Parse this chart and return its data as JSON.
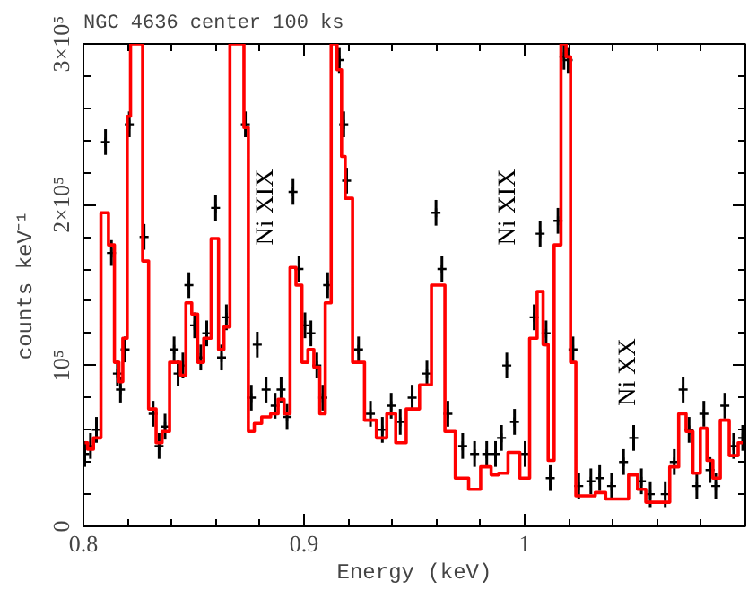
{
  "chart_data": {
    "type": "scatter",
    "title": "NGC 4636 center 100 ks",
    "xlabel": "Energy (keV)",
    "ylabel": "counts keV⁻¹",
    "xlim": [
      0.8,
      1.1
    ],
    "ylim": [
      0,
      300000
    ],
    "xticks": [
      {
        "value": 0.8,
        "label": "0.8"
      },
      {
        "value": 0.82,
        "label": null
      },
      {
        "value": 0.84,
        "label": null
      },
      {
        "value": 0.86,
        "label": null
      },
      {
        "value": 0.88,
        "label": null
      },
      {
        "value": 0.9,
        "label": "0.9"
      },
      {
        "value": 0.92,
        "label": null
      },
      {
        "value": 0.94,
        "label": null
      },
      {
        "value": 0.96,
        "label": null
      },
      {
        "value": 0.98,
        "label": null
      },
      {
        "value": 1,
        "label": "1"
      },
      {
        "value": 1.02,
        "label": null
      },
      {
        "value": 1.04,
        "label": null
      },
      {
        "value": 1.06,
        "label": null
      },
      {
        "value": 1.08,
        "label": null
      }
    ],
    "yticks": [
      {
        "value": 0,
        "label": "0"
      },
      {
        "value": 20000,
        "label": null
      },
      {
        "value": 40000,
        "label": null
      },
      {
        "value": 60000,
        "label": null
      },
      {
        "value": 80000,
        "label": null
      },
      {
        "value": 100000,
        "label": "10⁵"
      },
      {
        "value": 120000,
        "label": null
      },
      {
        "value": 140000,
        "label": null
      },
      {
        "value": 160000,
        "label": null
      },
      {
        "value": 180000,
        "label": null
      },
      {
        "value": 200000,
        "label": "2×10⁵"
      },
      {
        "value": 220000,
        "label": null
      },
      {
        "value": 240000,
        "label": null
      },
      {
        "value": 260000,
        "label": null
      },
      {
        "value": 280000,
        "label": null
      },
      {
        "value": 300000,
        "label": "3×10⁵"
      }
    ],
    "grid": false,
    "annotations": [
      "Ni XIX",
      "Ni XIX",
      "Ni XX"
    ],
    "series": [
      {
        "color": "#000000",
        "marker": "cross",
        "x": [
          0.8006,
          0.8032,
          0.8059,
          0.81,
          0.8127,
          0.8154,
          0.8168,
          0.8189,
          0.8208,
          0.8275,
          0.8316,
          0.8343,
          0.837,
          0.8411,
          0.8429,
          0.8451,
          0.8478,
          0.8504,
          0.8532,
          0.8559,
          0.8599,
          0.8626,
          0.8648,
          0.8734,
          0.8761,
          0.8788,
          0.8828,
          0.8869,
          0.8896,
          0.8923,
          0.895,
          0.8977,
          0.9004,
          0.9031,
          0.9058,
          0.9085,
          0.9107,
          0.916,
          0.918,
          0.9193,
          0.9247,
          0.9301,
          0.9355,
          0.9395,
          0.9436,
          0.949,
          0.9557,
          0.9598,
          0.9625,
          0.9652,
          0.9719,
          0.9773,
          0.9828,
          0.9868,
          0.9895,
          0.9919,
          0.9954,
          1.0002,
          1.0043,
          1.007,
          1.0097,
          1.0116,
          1.0151,
          1.0178,
          1.0197,
          1.0219,
          1.0245,
          1.03,
          1.034,
          1.0394,
          1.0448,
          1.0494,
          1.0529,
          1.0569,
          1.0637,
          1.0678,
          1.0718,
          1.0745,
          1.078,
          1.0812,
          1.084,
          1.0866,
          1.0907,
          1.0947,
          1.0988
        ],
        "values": [
          45000,
          50000,
          60000,
          239000,
          170000,
          95000,
          85000,
          110000,
          250000,
          180000,
          70000,
          50000,
          62000,
          110000,
          95000,
          100000,
          150000,
          125000,
          105000,
          120000,
          198000,
          105000,
          130000,
          250000,
          80000,
          113000,
          85000,
          75000,
          85000,
          68000,
          208000,
          160000,
          125000,
          120000,
          100000,
          80000,
          150000,
          290000,
          250000,
          215000,
          110000,
          70000,
          60000,
          75000,
          65000,
          80000,
          95000,
          195000,
          160000,
          70000,
          50000,
          45000,
          45000,
          45000,
          55000,
          100000,
          65000,
          45000,
          130000,
          182000,
          120000,
          30000,
          190000,
          292000,
          290000,
          110000,
          25000,
          28000,
          30000,
          25000,
          40000,
          55000,
          28000,
          20000,
          20000,
          40000,
          85000,
          60000,
          25000,
          70000,
          35000,
          25000,
          75000,
          50000,
          55000
        ],
        "errors": [
          8000,
          8000,
          8000,
          8000,
          8000,
          8000,
          8000,
          8000,
          8000,
          8000,
          8000,
          8000,
          8000,
          8000,
          8000,
          8000,
          8000,
          8000,
          8000,
          8000,
          8000,
          8000,
          8000,
          8000,
          8000,
          8000,
          8000,
          8000,
          8000,
          8000,
          8000,
          8000,
          8000,
          8000,
          8000,
          8000,
          8000,
          8000,
          8000,
          8000,
          8000,
          8000,
          8000,
          8000,
          8000,
          8000,
          8000,
          8000,
          8000,
          8000,
          8000,
          8000,
          8000,
          8000,
          8000,
          8000,
          8000,
          8000,
          8000,
          8000,
          8000,
          8000,
          8000,
          8000,
          8000,
          8000,
          8000,
          8000,
          8000,
          8000,
          8000,
          8000,
          8000,
          8000,
          8000,
          8000,
          8000,
          8000,
          8000,
          8000,
          8000,
          8000,
          8000,
          8000,
          8000
        ]
      },
      {
        "type": "step",
        "color": "#ff0000",
        "line_style": "solid",
        "x": [
          0.8006,
          0.8032,
          0.8059,
          0.81,
          0.8127,
          0.8154,
          0.8168,
          0.8189,
          0.8208,
          0.8219,
          0.8262,
          0.8275,
          0.8316,
          0.8343,
          0.837,
          0.8411,
          0.8429,
          0.8451,
          0.8478,
          0.8504,
          0.8532,
          0.8559,
          0.8599,
          0.8626,
          0.8648,
          0.868,
          0.8721,
          0.8734,
          0.8761,
          0.8788,
          0.8828,
          0.8869,
          0.8896,
          0.8923,
          0.895,
          0.8977,
          0.9004,
          0.9031,
          0.9058,
          0.9085,
          0.9107,
          0.9139,
          0.916,
          0.918,
          0.9193,
          0.9247,
          0.9301,
          0.9355,
          0.9395,
          0.9436,
          0.949,
          0.9557,
          0.9598,
          0.9625,
          0.9652,
          0.9719,
          0.9773,
          0.9828,
          0.9868,
          0.9895,
          0.9954,
          1.0002,
          1.0043,
          1.007,
          1.0097,
          1.0116,
          1.0151,
          1.0178,
          1.0197,
          1.0219,
          1.0245,
          1.03,
          1.034,
          1.0394,
          1.0448,
          1.0494,
          1.0529,
          1.0569,
          1.0637,
          1.0678,
          1.0718,
          1.0745,
          1.078,
          1.0812,
          1.084,
          1.0866,
          1.0907,
          1.0947,
          1.0988
        ],
        "values": [
          52000,
          48000,
          55000,
          195000,
          175000,
          102000,
          90000,
          117000,
          255000,
          300000,
          300000,
          165000,
          73000,
          52000,
          59000,
          102000,
          102000,
          94000,
          139000,
          132000,
          102000,
          117000,
          179000,
          110000,
          124000,
          300000,
          300000,
          248000,
          59000,
          64000,
          68000,
          70000,
          79000,
          70000,
          161000,
          150000,
          102000,
          110000,
          99000,
          70000,
          139000,
          300000,
          284000,
          230000,
          204000,
          102000,
          66000,
          55000,
          70000,
          52000,
          73000,
          88000,
          150000,
          150000,
          59000,
          30000,
          23000,
          37000,
          32000,
          33000,
          46000,
          30000,
          117000,
          146000,
          113000,
          41000,
          175000,
          300000,
          292000,
          102000,
          19000,
          19000,
          21000,
          17000,
          17000,
          32000,
          23000,
          15000,
          15000,
          37000,
          70000,
          59000,
          33000,
          61000,
          41000,
          30000,
          66000,
          44000,
          52000
        ]
      }
    ]
  }
}
